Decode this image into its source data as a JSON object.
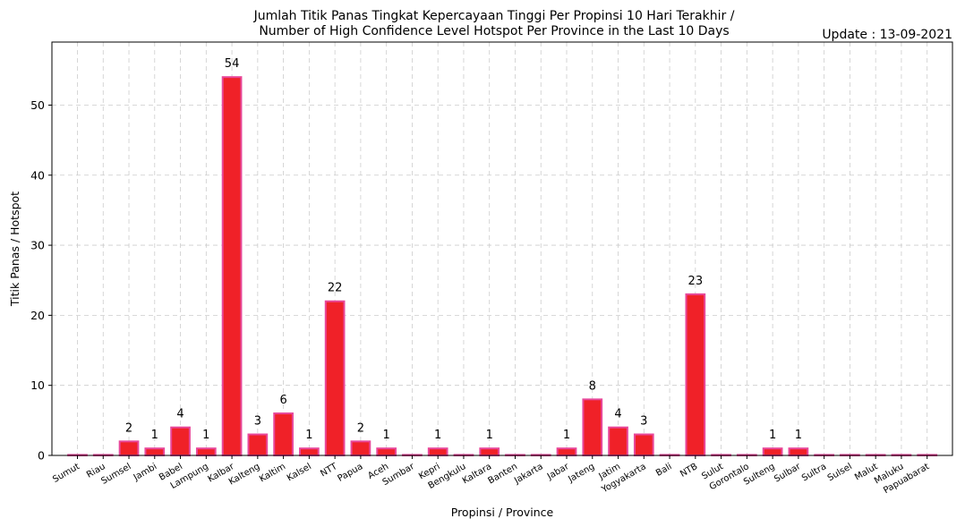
{
  "chart_data": {
    "type": "bar",
    "title": "Jumlah Titik Panas Tingkat Kepercayaan Tinggi Per Propinsi 10 Hari Terakhir /",
    "subtitle": "Number of High Confidence Level Hotspot Per Province in the Last 10 Days",
    "update_text": "Update : 13-09-2021",
    "xlabel": "Propinsi / Province",
    "ylabel": "Titik Panas / Hotspot",
    "ylim": [
      0,
      59
    ],
    "yticks": [
      0,
      10,
      20,
      30,
      40,
      50
    ],
    "grid": true,
    "bar_color": "#f02128",
    "bar_edge_color": "#e8489a",
    "categories": [
      "Sumut",
      "Riau",
      "Sumsel",
      "Jambi",
      "Babel",
      "Lampung",
      "Kalbar",
      "Kalteng",
      "Kaltim",
      "Kalsel",
      "NTT",
      "Papua",
      "Aceh",
      "Sumbar",
      "Kepri",
      "Bengkulu",
      "Kaltara",
      "Banten",
      "Jakarta",
      "Jabar",
      "Jateng",
      "Jatim",
      "Yogyakarta",
      "Bali",
      "NTB",
      "Sulut",
      "Gorontalo",
      "Sulteng",
      "Sulbar",
      "Sultra",
      "Sulsel",
      "Malut",
      "Maluku",
      "Papuabarat"
    ],
    "values": [
      0,
      0,
      2,
      1,
      4,
      1,
      54,
      3,
      6,
      1,
      22,
      2,
      1,
      0,
      1,
      0,
      1,
      0,
      0,
      1,
      8,
      4,
      3,
      0,
      23,
      0,
      0,
      1,
      1,
      0,
      0,
      0,
      0,
      0
    ]
  }
}
